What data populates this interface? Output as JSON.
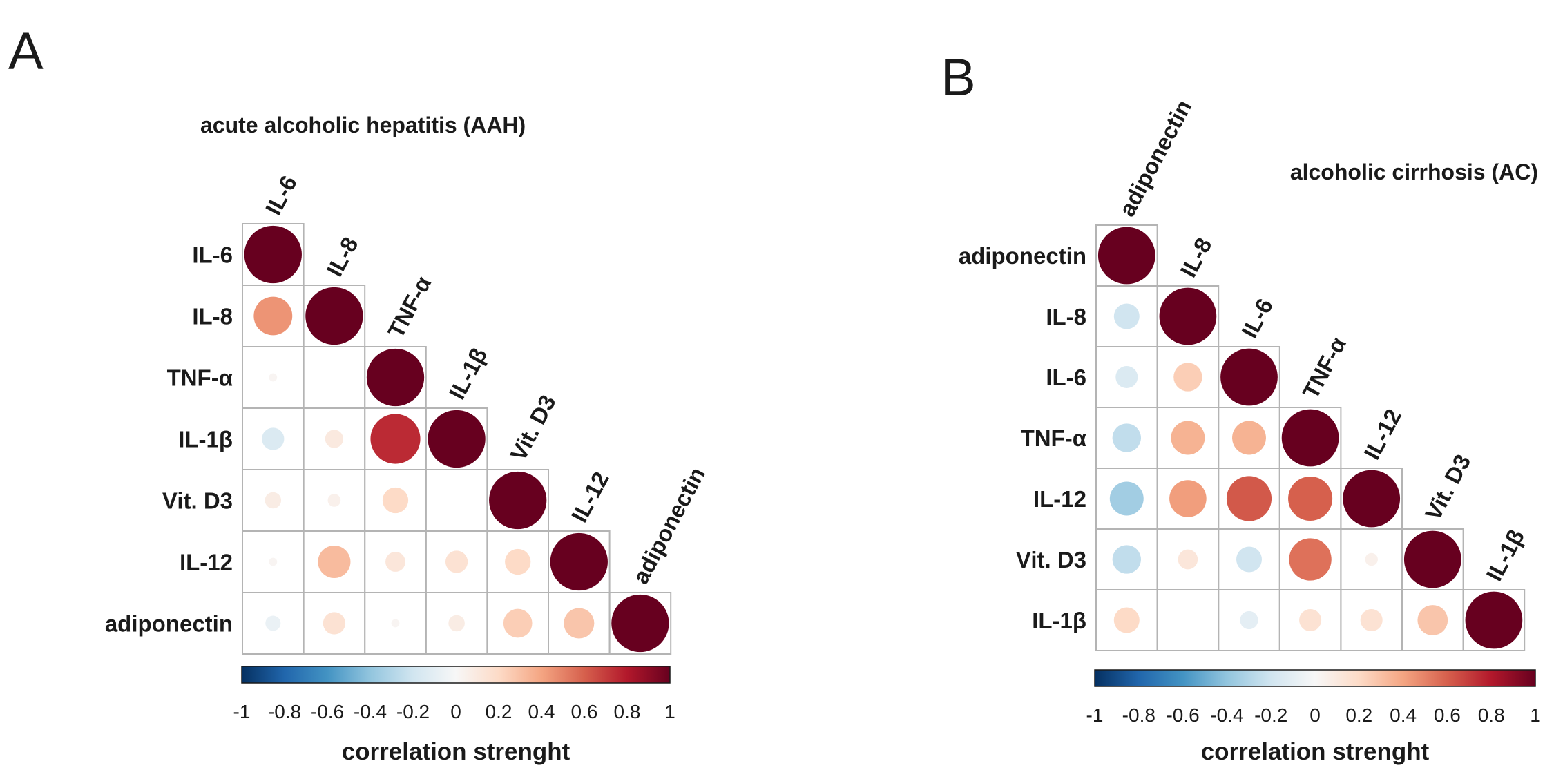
{
  "colors": {
    "scale": [
      "#053061",
      "#2166ac",
      "#4393c3",
      "#92c5de",
      "#d1e5f0",
      "#f7f7f7",
      "#fddbc7",
      "#f4a582",
      "#d6604d",
      "#b2182b",
      "#67001f"
    ],
    "grid": "#b4b4b4",
    "text": "#1a1a1a"
  },
  "chart_data": [
    {
      "type": "heatmap",
      "subtype": "correlation-matrix-lower-triangle-circles",
      "panel": "A",
      "title": "acute alcoholic hepatitis (AAH)",
      "variables": [
        "IL-6",
        "IL-8",
        "TNF-α",
        "IL-1β",
        "Vit. D3",
        "IL-12",
        "adiponectin"
      ],
      "matrix": [
        [
          1.0
        ],
        [
          0.45,
          1.0
        ],
        [
          0.02,
          0.0,
          1.0
        ],
        [
          -0.15,
          0.1,
          0.75,
          1.0
        ],
        [
          0.08,
          0.05,
          0.2,
          0.0,
          1.0
        ],
        [
          0.02,
          0.32,
          0.12,
          0.15,
          0.2,
          1.0
        ],
        [
          -0.07,
          0.15,
          0.02,
          0.08,
          0.25,
          0.28,
          1.0
        ]
      ],
      "colorbar": {
        "range": [
          -1,
          1
        ],
        "ticks": [
          "-1",
          "-0.8",
          "-0.6",
          "-0.4",
          "-0.2",
          "0",
          "0.2",
          "0.4",
          "0.6",
          "0.8",
          "1"
        ],
        "title": "correlation strenght"
      }
    },
    {
      "type": "heatmap",
      "subtype": "correlation-matrix-lower-triangle-circles",
      "panel": "B",
      "title": "alcoholic cirrhosis (AC)",
      "variables": [
        "adiponectin",
        "IL-8",
        "IL-6",
        "TNF-α",
        "IL-12",
        "Vit. D3",
        "IL-1β"
      ],
      "matrix": [
        [
          1.0
        ],
        [
          -0.2,
          1.0
        ],
        [
          -0.15,
          0.25,
          1.0
        ],
        [
          -0.25,
          0.35,
          0.35,
          1.0
        ],
        [
          -0.35,
          0.42,
          0.62,
          0.6,
          1.0
        ],
        [
          -0.25,
          0.12,
          -0.2,
          0.55,
          0.05,
          1.0
        ],
        [
          0.2,
          0.0,
          -0.1,
          0.15,
          0.15,
          0.28,
          1.0
        ]
      ],
      "colorbar": {
        "range": [
          -1,
          1
        ],
        "ticks": [
          "-1",
          "-0.8",
          "-0.6",
          "-0.4",
          "-0.2",
          "0",
          "0.2",
          "0.4",
          "0.6",
          "0.8",
          "1"
        ],
        "title": "correlation strenght"
      }
    }
  ]
}
